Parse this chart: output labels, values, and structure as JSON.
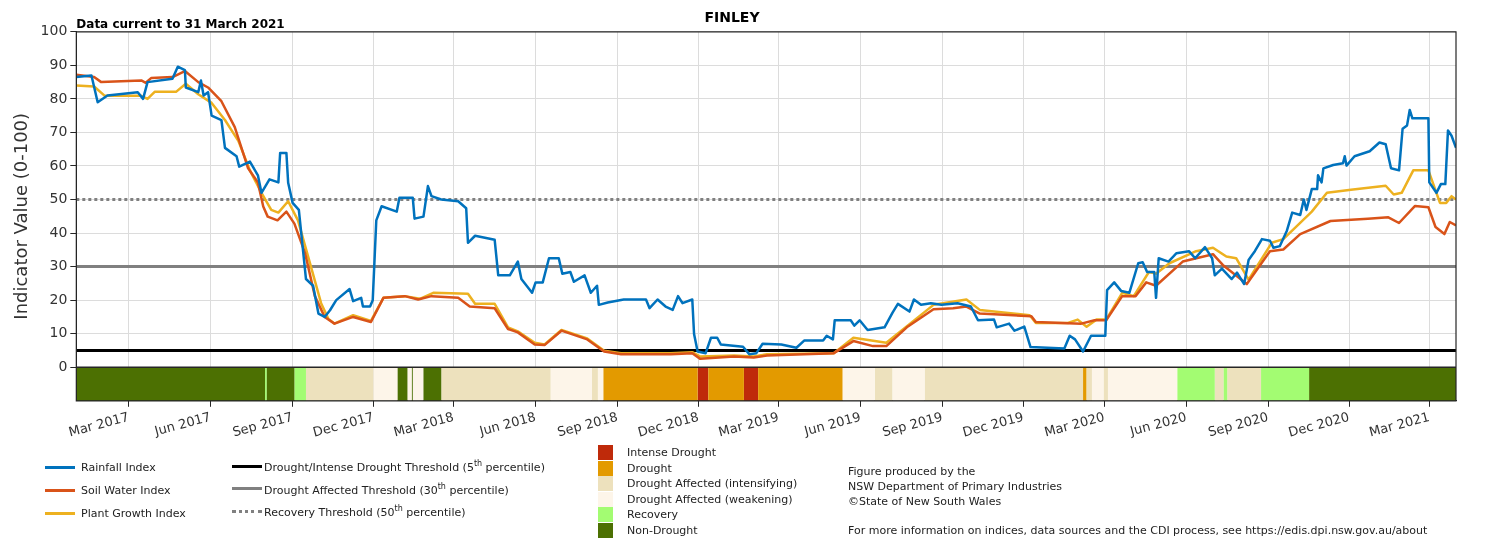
{
  "chart_data": {
    "type": "line",
    "title": "FINLEY",
    "subtitle": "Data current to 31 March 2021",
    "ylabel": "Indicator Value (0-100)",
    "xlim": [
      "2017-01-01",
      "2021-03-31"
    ],
    "xticks": [
      {
        "value": "2017-03-01",
        "label": "Mar 2017"
      },
      {
        "value": "2017-06-01",
        "label": "Jun 2017"
      },
      {
        "value": "2017-09-01",
        "label": "Sep 2017"
      },
      {
        "value": "2017-12-01",
        "label": "Dec 2017"
      },
      {
        "value": "2018-03-01",
        "label": "Mar 2018"
      },
      {
        "value": "2018-06-01",
        "label": "Jun 2018"
      },
      {
        "value": "2018-09-01",
        "label": "Sep 2018"
      },
      {
        "value": "2018-12-01",
        "label": "Dec 2018"
      },
      {
        "value": "2019-03-01",
        "label": "Mar 2019"
      },
      {
        "value": "2019-06-01",
        "label": "Jun 2019"
      },
      {
        "value": "2019-09-01",
        "label": "Sep 2019"
      },
      {
        "value": "2019-12-01",
        "label": "Dec 2019"
      },
      {
        "value": "2020-03-01",
        "label": "Mar 2020"
      },
      {
        "value": "2020-06-01",
        "label": "Jun 2020"
      },
      {
        "value": "2020-09-01",
        "label": "Sep 2020"
      },
      {
        "value": "2020-12-01",
        "label": "Dec 2020"
      },
      {
        "value": "2021-03-01",
        "label": "Mar 2021"
      }
    ],
    "ylim": [
      -10,
      100
    ],
    "yticks": [
      0,
      10,
      20,
      30,
      40,
      50,
      60,
      70,
      80,
      90,
      100
    ],
    "grid": true,
    "legend": "bottom",
    "series": [
      {
        "name": "Rainfall Index",
        "color": "#0072bd",
        "x": [
          "2017-01-01",
          "2017-01-18",
          "2017-01-25",
          "2017-02-05",
          "2017-03-11",
          "2017-03-17",
          "2017-03-22",
          "2017-04-19",
          "2017-04-25",
          "2017-05-03",
          "2017-05-04",
          "2017-05-18",
          "2017-05-21",
          "2017-05-24",
          "2017-05-29",
          "2017-06-02",
          "2017-06-13",
          "2017-06-17",
          "2017-06-30",
          "2017-07-03",
          "2017-07-15",
          "2017-07-24",
          "2017-07-28",
          "2017-08-06",
          "2017-08-16",
          "2017-08-18",
          "2017-08-25",
          "2017-08-27",
          "2017-09-01",
          "2017-09-08",
          "2017-09-16",
          "2017-09-24",
          "2017-09-30",
          "2017-10-07",
          "2017-10-13",
          "2017-10-20",
          "2017-11-04",
          "2017-11-08",
          "2017-11-17",
          "2017-11-19",
          "2017-11-27",
          "2017-11-30",
          "2017-12-04",
          "2017-12-10",
          "2017-12-27",
          "2017-12-30",
          "2018-01-14",
          "2018-01-16",
          "2018-01-26",
          "2018-01-31",
          "2018-02-04",
          "2018-02-15",
          "2018-03-06",
          "2018-03-15",
          "2018-03-17",
          "2018-03-25",
          "2018-04-16",
          "2018-04-20",
          "2018-05-03",
          "2018-05-12",
          "2018-05-16",
          "2018-05-28",
          "2018-06-01",
          "2018-06-09",
          "2018-06-16",
          "2018-06-27",
          "2018-07-01",
          "2018-07-10",
          "2018-07-14",
          "2018-07-26",
          "2018-08-02",
          "2018-08-09",
          "2018-08-11",
          "2018-08-21",
          "2018-09-08",
          "2018-10-03",
          "2018-10-07",
          "2018-10-16",
          "2018-10-25",
          "2018-11-02",
          "2018-11-08",
          "2018-11-13",
          "2018-11-24",
          "2018-11-26",
          "2018-11-30",
          "2018-12-09",
          "2018-12-15",
          "2018-12-22",
          "2018-12-26",
          "2019-01-20",
          "2019-01-27",
          "2019-02-04",
          "2019-02-11",
          "2019-03-04",
          "2019-03-21",
          "2019-03-30",
          "2019-04-20",
          "2019-04-24",
          "2019-05-01",
          "2019-05-03",
          "2019-05-21",
          "2019-05-25",
          "2019-05-31",
          "2019-06-09",
          "2019-06-28",
          "2019-07-07",
          "2019-07-13",
          "2019-07-26",
          "2019-07-31",
          "2019-08-08",
          "2019-08-19",
          "2019-08-31",
          "2019-09-18",
          "2019-10-03",
          "2019-10-11",
          "2019-10-29",
          "2019-11-01",
          "2019-11-15",
          "2019-11-21",
          "2019-12-02",
          "2019-12-09",
          "2020-01-16",
          "2020-01-22",
          "2020-01-28",
          "2020-02-06",
          "2020-02-15",
          "2020-03-02",
          "2020-03-04",
          "2020-03-12",
          "2020-03-20",
          "2020-03-29",
          "2020-04-08",
          "2020-04-13",
          "2020-04-18",
          "2020-04-26",
          "2020-04-28",
          "2020-05-01",
          "2020-05-12",
          "2020-05-21",
          "2020-06-04",
          "2020-06-11",
          "2020-06-22",
          "2020-06-30",
          "2020-07-03",
          "2020-07-11",
          "2020-07-22",
          "2020-07-28",
          "2020-08-05",
          "2020-08-10",
          "2020-08-17",
          "2020-08-25",
          "2020-09-03",
          "2020-09-07",
          "2020-09-14",
          "2020-09-22",
          "2020-09-28",
          "2020-10-07",
          "2020-10-11",
          "2020-10-14",
          "2020-10-20",
          "2020-10-26",
          "2020-10-27",
          "2020-10-31",
          "2020-11-02",
          "2020-11-13",
          "2020-11-24",
          "2020-11-26",
          "2020-11-28",
          "2020-12-07",
          "2020-12-24",
          "2021-01-04",
          "2021-01-11",
          "2021-01-17",
          "2021-01-26",
          "2021-01-30",
          "2021-02-04",
          "2021-02-07",
          "2021-02-10",
          "2021-02-28",
          "2021-03-01",
          "2021-03-09",
          "2021-03-14",
          "2021-03-19",
          "2021-03-22",
          "2021-03-26",
          "2021-03-31"
        ],
        "values": [
          86.5,
          87,
          79,
          81,
          82,
          80,
          85,
          86,
          89.6,
          88.6,
          83.4,
          82,
          85.5,
          81,
          82,
          75,
          73.7,
          65.4,
          62.9,
          59.8,
          61.3,
          57.2,
          52,
          56,
          55.1,
          63.9,
          63.9,
          55,
          49,
          46.9,
          26.3,
          24.3,
          16,
          15,
          17,
          20,
          23.3,
          19.7,
          20.7,
          18.1,
          18.1,
          20,
          43.8,
          48,
          46.4,
          50.5,
          50.5,
          44.3,
          44.9,
          54,
          51,
          50,
          49.5,
          47.4,
          37.1,
          39.2,
          38,
          27.4,
          27.4,
          31.5,
          26.3,
          22.2,
          25.3,
          25.3,
          32.5,
          32.5,
          27.9,
          28.4,
          25.5,
          27.4,
          22.2,
          24.3,
          18.6,
          19.3,
          20.2,
          20.2,
          17.6,
          20.2,
          18.1,
          17.1,
          21.2,
          19.1,
          20.2,
          9.9,
          4.7,
          4.2,
          8.8,
          8.8,
          6.8,
          6.1,
          3.9,
          4.2,
          7,
          6.8,
          5.8,
          8,
          8,
          9.4,
          8.3,
          14,
          14,
          12.4,
          14,
          11.1,
          11.9,
          16.3,
          18.9,
          16.6,
          20.2,
          18.6,
          19.1,
          18.6,
          19.1,
          18.1,
          14,
          14.2,
          11.9,
          13,
          10.9,
          12.1,
          6,
          5.6,
          9.4,
          8.3,
          4.7,
          9.4,
          9.4,
          23,
          25.3,
          22.7,
          22.2,
          31,
          31.3,
          28.4,
          28.4,
          20.7,
          32.5,
          31.5,
          34,
          34.6,
          32.5,
          35.8,
          32.5,
          27.4,
          29.4,
          26.3,
          28.2,
          24.8,
          32,
          34.6,
          38.2,
          37.7,
          35.6,
          36.1,
          40.7,
          46.1,
          45.4,
          50,
          46.9,
          53.1,
          53.1,
          57.2,
          55.1,
          59.3,
          60.3,
          60.8,
          62.9,
          60.1,
          62.9,
          64.4,
          67,
          66.5,
          59.3,
          58.7,
          71.1,
          72.1,
          76.7,
          74.2,
          74.2,
          55.1,
          52,
          54.6,
          54.6,
          70.6,
          69,
          65.4
        ]
      },
      {
        "name": "Soil Water Index",
        "color": "#d95319",
        "x": [
          "2017-01-01",
          "2017-01-21",
          "2017-01-29",
          "2017-03-15",
          "2017-03-20",
          "2017-03-26",
          "2017-04-19",
          "2017-05-03",
          "2017-05-18",
          "2017-05-29",
          "2017-06-13",
          "2017-06-28",
          "2017-07-13",
          "2017-07-24",
          "2017-07-30",
          "2017-08-04",
          "2017-08-15",
          "2017-08-25",
          "2017-09-03",
          "2017-09-15",
          "2017-09-26",
          "2017-10-07",
          "2017-10-18",
          "2017-11-08",
          "2017-11-28",
          "2017-12-12",
          "2018-01-05",
          "2018-01-20",
          "2018-02-04",
          "2018-03-06",
          "2018-03-19",
          "2018-04-16",
          "2018-05-01",
          "2018-05-12",
          "2018-05-31",
          "2018-06-11",
          "2018-06-30",
          "2018-07-29",
          "2018-08-17",
          "2018-09-05",
          "2018-10-31",
          "2018-11-24",
          "2018-12-03",
          "2019-01-10",
          "2019-02-01",
          "2019-02-16",
          "2019-05-02",
          "2019-05-24",
          "2019-06-15",
          "2019-06-30",
          "2019-07-23",
          "2019-08-22",
          "2019-09-13",
          "2019-09-28",
          "2019-10-13",
          "2019-12-10",
          "2019-12-15",
          "2020-02-04",
          "2020-02-19",
          "2020-03-03",
          "2020-03-21",
          "2020-04-05",
          "2020-04-17",
          "2020-04-28",
          "2020-05-28",
          "2020-07-01",
          "2020-07-12",
          "2020-08-08",
          "2020-09-03",
          "2020-09-18",
          "2020-10-07",
          "2020-11-10",
          "2020-12-22",
          "2021-01-14",
          "2021-01-26",
          "2021-02-13",
          "2021-02-28",
          "2021-03-08",
          "2021-03-18",
          "2021-03-24",
          "2021-03-31"
        ],
        "values": [
          87.2,
          86.5,
          85,
          85.5,
          84.8,
          86.2,
          86.5,
          88.3,
          85,
          83.4,
          79.3,
          71.6,
          59.3,
          55.1,
          47.9,
          44.9,
          43.8,
          46.4,
          42.8,
          34,
          21.2,
          15,
          13,
          15,
          13.5,
          20.7,
          21.2,
          20.2,
          21.2,
          20.7,
          18.1,
          17.6,
          11.4,
          10.4,
          6.8,
          6.6,
          10.9,
          8.3,
          4.7,
          3.9,
          3.9,
          4.2,
          2.5,
          3.2,
          2.9,
          3.5,
          4.2,
          7.8,
          6.3,
          6.3,
          11.9,
          17.3,
          17.6,
          18.1,
          16,
          15.2,
          13.5,
          13,
          14,
          14,
          21.2,
          21.2,
          25.3,
          24.3,
          31.5,
          33.7,
          30.5,
          24.8,
          34.6,
          35.1,
          39.7,
          43.6,
          44.3,
          44.7,
          43,
          48.1,
          47.7,
          41.8,
          39.7,
          43.3,
          42.3
        ]
      },
      {
        "name": "Plant Growth Index",
        "color": "#edb120",
        "x": [
          "2017-01-01",
          "2017-01-21",
          "2017-02-02",
          "2017-03-15",
          "2017-03-22",
          "2017-03-30",
          "2017-04-23",
          "2017-05-04",
          "2017-05-18",
          "2017-06-02",
          "2017-06-17",
          "2017-07-02",
          "2017-07-15",
          "2017-07-28",
          "2017-08-08",
          "2017-08-16",
          "2017-08-27",
          "2017-09-07",
          "2017-09-20",
          "2017-10-03",
          "2017-10-11",
          "2017-10-18",
          "2017-11-08",
          "2017-11-28",
          "2017-12-12",
          "2018-01-05",
          "2018-01-22",
          "2018-02-06",
          "2018-03-17",
          "2018-03-25",
          "2018-04-16",
          "2018-05-01",
          "2018-05-12",
          "2018-05-31",
          "2018-06-11",
          "2018-06-30",
          "2018-07-29",
          "2018-08-17",
          "2018-09-05",
          "2018-10-31",
          "2018-11-24",
          "2018-12-03",
          "2019-01-10",
          "2019-02-01",
          "2019-02-16",
          "2019-05-02",
          "2019-05-24",
          "2019-06-30",
          "2019-08-22",
          "2019-09-28",
          "2019-10-13",
          "2019-12-08",
          "2019-12-15",
          "2020-01-20",
          "2020-01-31",
          "2020-02-10",
          "2020-02-21",
          "2020-03-03",
          "2020-03-21",
          "2020-04-03",
          "2020-04-20",
          "2020-04-28",
          "2020-05-13",
          "2020-06-12",
          "2020-07-01",
          "2020-07-16",
          "2020-07-27",
          "2020-08-10",
          "2020-09-05",
          "2020-09-18",
          "2020-10-20",
          "2020-11-06",
          "2020-12-03",
          "2021-01-11",
          "2021-01-20",
          "2021-01-29",
          "2021-02-11",
          "2021-02-28",
          "2021-03-13",
          "2021-03-20",
          "2021-03-26",
          "2021-03-31"
        ],
        "values": [
          84,
          83.7,
          80.9,
          80.9,
          80,
          82.1,
          82.1,
          84.5,
          81.4,
          78.8,
          73.7,
          67.5,
          58.7,
          52,
          46.9,
          46.1,
          49.5,
          43.8,
          31.5,
          19.1,
          14.5,
          13,
          15.5,
          13.8,
          20.7,
          21.2,
          20.4,
          22.2,
          21.9,
          18.9,
          18.9,
          11.9,
          10.7,
          7.3,
          6.8,
          11.1,
          8.6,
          4.9,
          4.2,
          4.2,
          4.5,
          3.2,
          3.5,
          3.2,
          3.9,
          4.2,
          8.8,
          7.3,
          18.6,
          20.2,
          17.1,
          15.5,
          13.2,
          13.2,
          14.2,
          12.1,
          14.2,
          14.2,
          22.2,
          21.2,
          28.4,
          27.9,
          31,
          34.6,
          35.6,
          33,
          32.5,
          26.1,
          37.1,
          38.2,
          46.4,
          52,
          52.9,
          54.1,
          51.5,
          52,
          58.7,
          58.7,
          49,
          49,
          51,
          50
        ]
      }
    ],
    "ref_lines": [
      {
        "axis": "y",
        "value": 5,
        "label": "Drought/Intense Drought Threshold (5$^{th}$ percentile)",
        "color": "#000000",
        "line_style": "solid"
      },
      {
        "axis": "y",
        "value": 30,
        "label": "Drought Affected Threshold (30$^{th}$ percentile)",
        "color": "#808080",
        "line_style": "solid"
      },
      {
        "axis": "y",
        "value": 50,
        "label": "Recovery Threshold (50$^{th}$ percentile)",
        "color": "#808080",
        "line_style": "dotted"
      }
    ],
    "bands": [
      {
        "axis": "x",
        "from": "2018-11-30",
        "to": "2018-12-12",
        "label": "Intense Drought",
        "color": "#bf2a0a"
      },
      {
        "axis": "x",
        "from": "2019-01-21",
        "to": "2019-02-06",
        "color": "#bf2a0a"
      },
      {
        "axis": "x",
        "from": "2018-08-16",
        "to": "2018-11-30",
        "label": "Drought",
        "color": "#e39a00"
      },
      {
        "axis": "x",
        "from": "2018-12-12",
        "to": "2019-01-21",
        "color": "#e39a00"
      },
      {
        "axis": "x",
        "from": "2019-02-06",
        "to": "2019-05-12",
        "color": "#e39a00"
      },
      {
        "axis": "x",
        "from": "2020-02-06",
        "to": "2020-02-10",
        "color": "#e39a00"
      },
      {
        "axis": "x",
        "from": "2017-09-16",
        "to": "2017-12-01",
        "label": "Drought Affected (intensifying)",
        "color": "#ede1bd"
      },
      {
        "axis": "x",
        "from": "2018-02-15",
        "to": "2018-06-18",
        "color": "#ede1bd"
      },
      {
        "axis": "x",
        "from": "2018-08-03",
        "to": "2018-08-10",
        "color": "#ede1bd"
      },
      {
        "axis": "x",
        "from": "2019-06-17",
        "to": "2019-07-07",
        "color": "#ede1bd"
      },
      {
        "axis": "x",
        "from": "2019-08-12",
        "to": "2020-02-06",
        "color": "#ede1bd"
      },
      {
        "axis": "x",
        "from": "2020-02-10",
        "to": "2020-02-16",
        "color": "#ede1bd"
      },
      {
        "axis": "x",
        "from": "2020-02-29",
        "to": "2020-03-05",
        "color": "#ede1bd"
      },
      {
        "axis": "x",
        "from": "2020-07-03",
        "to": "2020-07-13",
        "color": "#ede1bd"
      },
      {
        "axis": "x",
        "from": "2020-07-17",
        "to": "2020-08-24",
        "color": "#ede1bd"
      },
      {
        "axis": "x",
        "from": "2017-12-01",
        "to": "2017-12-28",
        "label": "Drought Affected (weakening)",
        "color": "#fdf5e9"
      },
      {
        "axis": "x",
        "from": "2018-01-08",
        "to": "2018-01-13",
        "color": "#fdf5e9"
      },
      {
        "axis": "x",
        "from": "2018-01-14",
        "to": "2018-01-26",
        "color": "#fdf5e9"
      },
      {
        "axis": "x",
        "from": "2018-06-18",
        "to": "2018-08-03",
        "color": "#fdf5e9"
      },
      {
        "axis": "x",
        "from": "2018-08-10",
        "to": "2018-08-16",
        "color": "#fdf5e9"
      },
      {
        "axis": "x",
        "from": "2019-05-12",
        "to": "2019-06-17",
        "color": "#fdf5e9"
      },
      {
        "axis": "x",
        "from": "2019-07-07",
        "to": "2019-08-12",
        "color": "#fdf5e9"
      },
      {
        "axis": "x",
        "from": "2020-02-16",
        "to": "2020-02-29",
        "color": "#fdf5e9"
      },
      {
        "axis": "x",
        "from": "2020-03-05",
        "to": "2020-05-22",
        "color": "#fdf5e9"
      },
      {
        "axis": "x",
        "from": "2017-08-01",
        "to": "2017-08-03",
        "label": "Recovery",
        "color": "#a3fc72"
      },
      {
        "axis": "x",
        "from": "2017-09-03",
        "to": "2017-09-16",
        "color": "#a3fc72"
      },
      {
        "axis": "x",
        "from": "2020-05-22",
        "to": "2020-07-03",
        "color": "#a3fc72"
      },
      {
        "axis": "x",
        "from": "2020-07-13",
        "to": "2020-07-17",
        "color": "#a3fc72"
      },
      {
        "axis": "x",
        "from": "2020-08-24",
        "to": "2020-10-17",
        "color": "#a3fc72"
      },
      {
        "axis": "x",
        "from": "2017-01-01",
        "to": "2017-08-01",
        "label": "Non-Drought",
        "color": "#4c7002"
      },
      {
        "axis": "x",
        "from": "2017-08-03",
        "to": "2017-09-03",
        "color": "#4c7002"
      },
      {
        "axis": "x",
        "from": "2017-12-28",
        "to": "2018-01-08",
        "color": "#4c7002"
      },
      {
        "axis": "x",
        "from": "2018-01-13",
        "to": "2018-01-14",
        "color": "#4c7002"
      },
      {
        "axis": "x",
        "from": "2018-01-26",
        "to": "2018-02-15",
        "color": "#4c7002"
      },
      {
        "axis": "x",
        "from": "2020-10-17",
        "to": "2021-03-31",
        "color": "#4c7002"
      }
    ],
    "annotations": [
      "Figure produced by the\nNSW Department of Primary Industries\n©State of New South Wales",
      "For more information on indices, data sources and the CDI process, see https://edis.dpi.nsw.gov.au/about"
    ]
  }
}
